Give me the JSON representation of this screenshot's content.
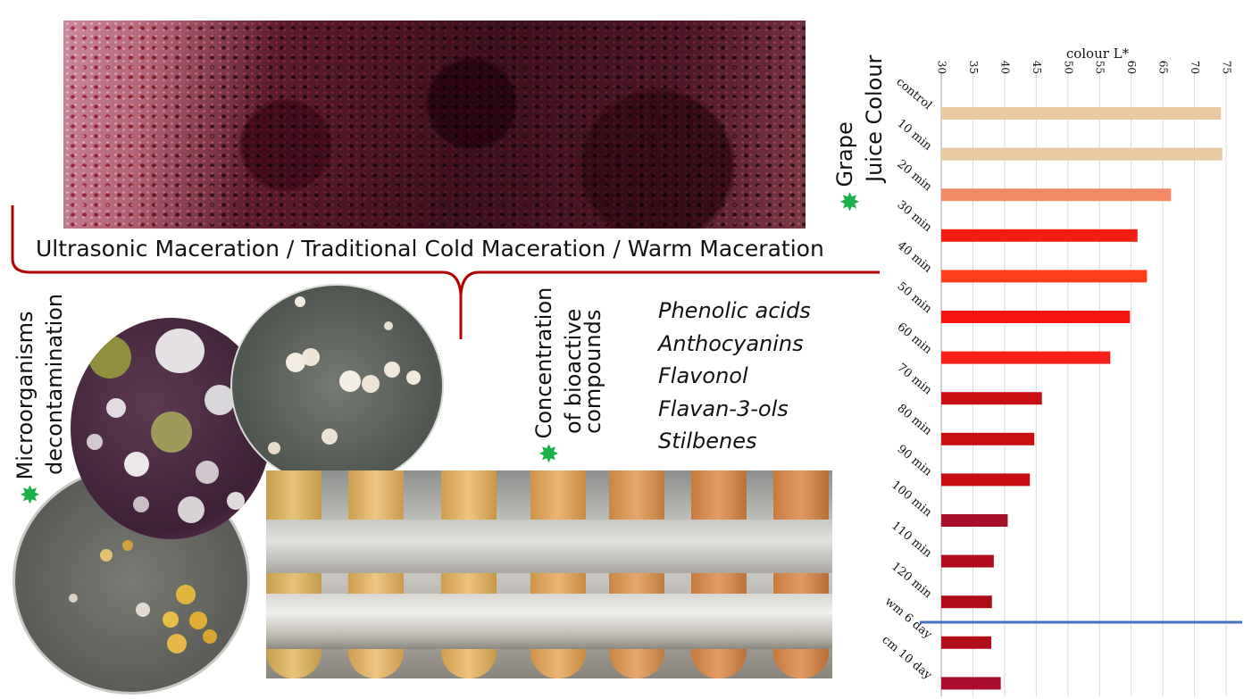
{
  "banner_title": "Ultrasonic Maceration / Traditional Cold Maceration / Warm Maceration",
  "compounds": {
    "heading_lines": [
      "Concentration",
      "of bioactive",
      "compounds"
    ],
    "items": [
      "Phenolic acids",
      "Anthocyanins",
      "Flavonol",
      "Flavan-3-ols",
      "Stilbenes"
    ]
  },
  "microorganisms": {
    "lines": [
      "Microorganisms",
      "decontamination"
    ]
  },
  "grape_juice": {
    "lines": [
      "Grape",
      "Juice Colour"
    ]
  },
  "accent_color": "#1db04a",
  "chart_data": {
    "type": "bar",
    "orientation": "horizontal",
    "xlabel": "colour L*",
    "xlim": [
      30,
      75
    ],
    "ticks": [
      30,
      35,
      40,
      45,
      50,
      55,
      60,
      65,
      70,
      75
    ],
    "grid": true,
    "categories": [
      "control",
      "10 min",
      "20 min",
      "30 min",
      "40 min",
      "50 min",
      "60 min",
      "70 min",
      "80 min",
      "90 min",
      "100 min",
      "110 min",
      "120 min",
      "wm 6 day",
      "cm 10 day"
    ],
    "values": [
      74.2,
      74.4,
      66.3,
      61.0,
      62.5,
      59.8,
      56.7,
      45.9,
      44.7,
      44.0,
      40.5,
      38.3,
      38.0,
      37.9,
      39.4
    ],
    "colors": [
      "#e8c9a1",
      "#e8c9a1",
      "#f4896a",
      "#f21d13",
      "#ff3e1a",
      "#f4160e",
      "#f8201a",
      "#c80d13",
      "#c80d13",
      "#c50d12",
      "#a5102b",
      "#b10d1c",
      "#ad0b16",
      "#b40e1c",
      "#a90f2c"
    ],
    "separator_after_index": 12,
    "separator_color": "#4472c4"
  }
}
